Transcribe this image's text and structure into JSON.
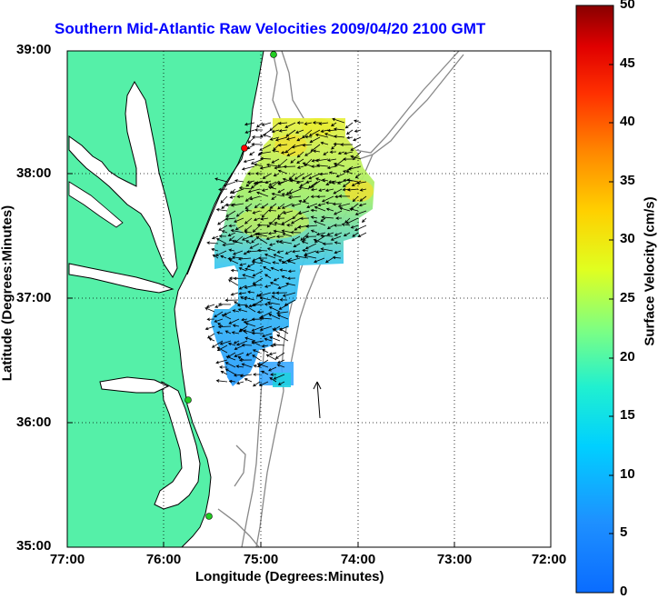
{
  "title": "Southern Mid-Atlantic Raw Velocities 2009/04/20 2100 GMT",
  "xaxis": {
    "label": "Longitude (Degrees:Minutes)",
    "ticks": [
      "77:00",
      "76:00",
      "75:00",
      "74:00",
      "73:00",
      "72:00"
    ]
  },
  "yaxis": {
    "label": "Latitude (Degrees:Minutes)",
    "ticks": [
      "39:00",
      "38:00",
      "37:00",
      "36:00",
      "35:00"
    ]
  },
  "colorbar": {
    "label": "Surface Velocity (cm/s)",
    "ticks": [
      "50",
      "45",
      "40",
      "35",
      "30",
      "25",
      "20",
      "15",
      "10",
      "5",
      "0"
    ],
    "range": [
      0,
      50
    ]
  },
  "colors": {
    "land": "#55f0a8",
    "coast": "#000000",
    "bathymetry": "#888888",
    "title": "#0000ff",
    "site_marker_green": "#22cc22",
    "site_marker_red": "#ff0000"
  },
  "grid": "dotted",
  "extent": {
    "lon": [
      -77,
      -72
    ],
    "lat": [
      35,
      39
    ]
  }
}
